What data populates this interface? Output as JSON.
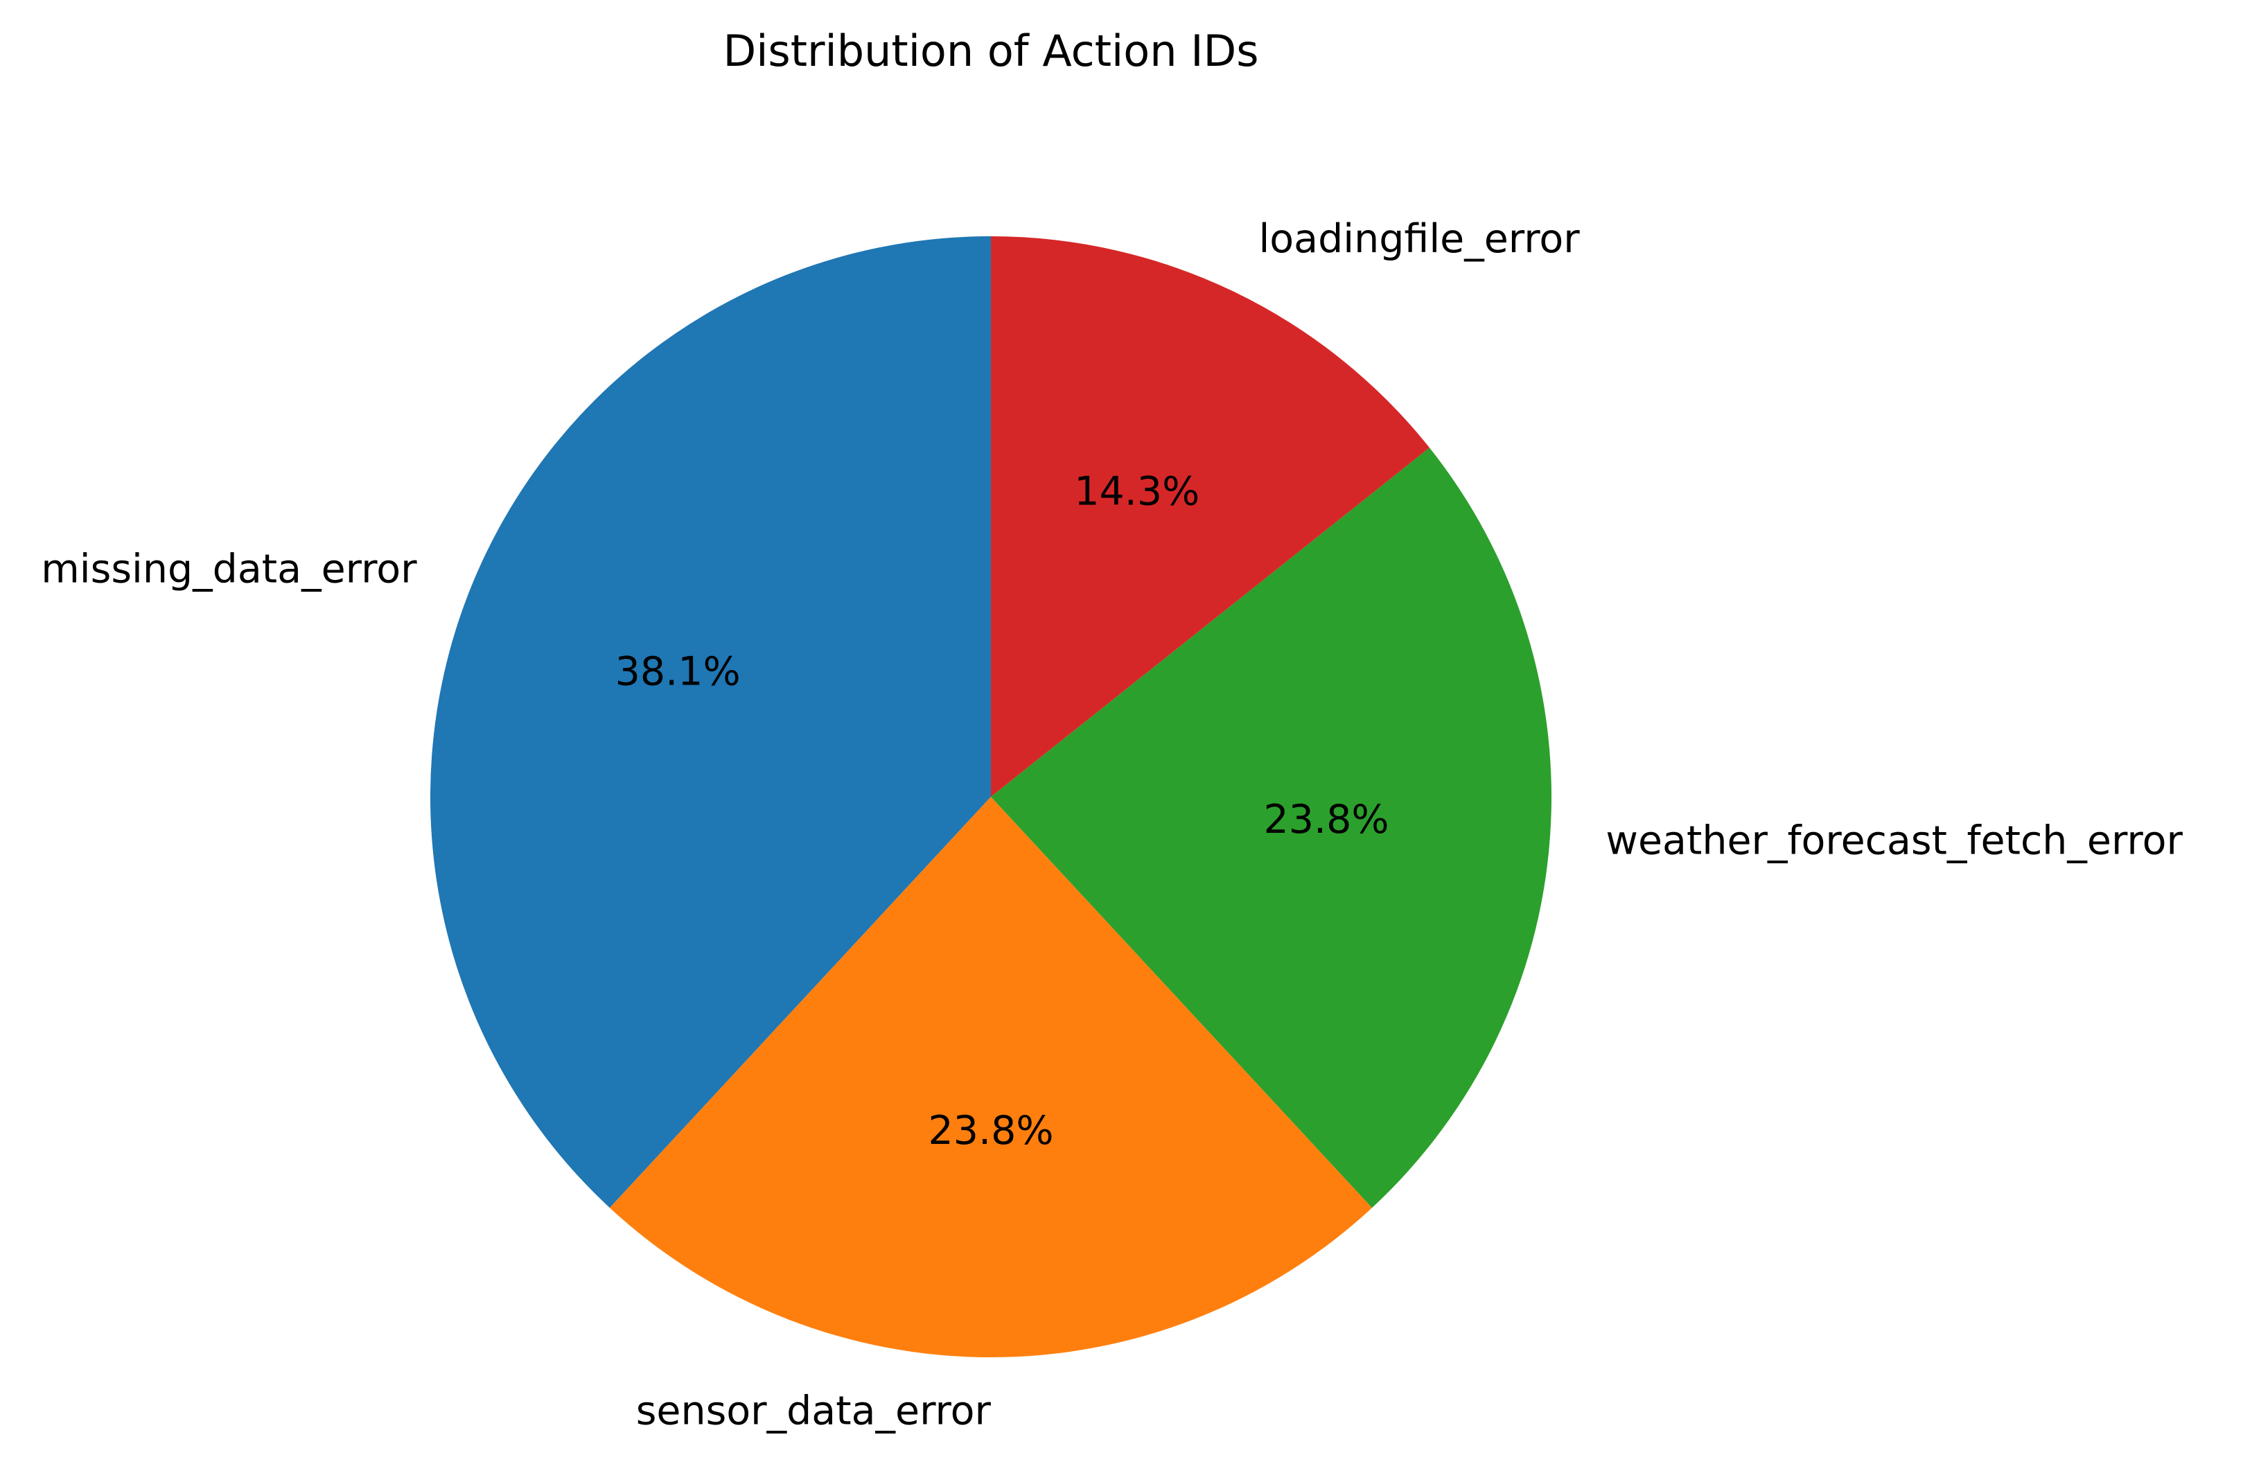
{
  "chart_data": {
    "type": "pie",
    "title": "Distribution of Action IDs",
    "categories": [
      "missing_data_error",
      "sensor_data_error",
      "weather_forecast_fetch_error",
      "loadingfile_error"
    ],
    "values": [
      38.1,
      23.8,
      23.8,
      14.3
    ],
    "value_labels": [
      "38.1%",
      "23.8%",
      "23.8%",
      "14.3%"
    ],
    "colors": [
      "#1f77b4",
      "#ff7f0e",
      "#2ca02c",
      "#d62728"
    ]
  }
}
